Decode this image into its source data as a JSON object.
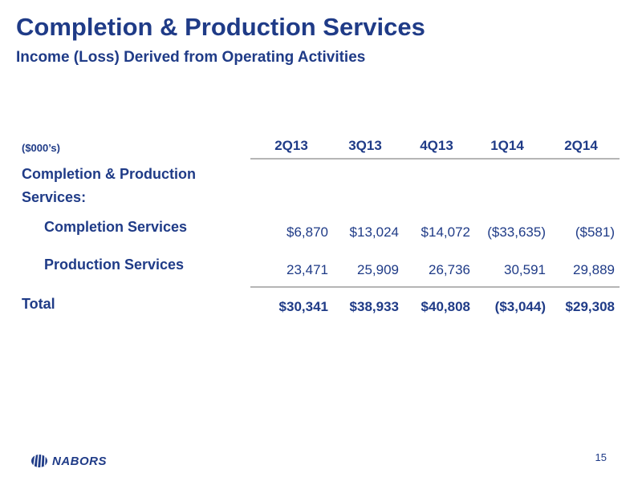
{
  "header": {
    "title": "Completion & Production Services",
    "subtitle": "Income (Loss) Derived from Operating Activities"
  },
  "table": {
    "units": "($000’s)",
    "columns": [
      "2Q13",
      "3Q13",
      "4Q13",
      "1Q14",
      "2Q14"
    ],
    "section_label_line1": "Completion & Production",
    "section_label_line2": "Services:",
    "rows": [
      {
        "label": "Completion Services",
        "values": [
          "$6,870",
          "$13,024",
          "$14,072",
          "($33,635)",
          "($581)"
        ]
      },
      {
        "label": "Production Services",
        "values": [
          "23,471",
          "25,909",
          "26,736",
          "30,591",
          "29,889"
        ]
      },
      {
        "label": "Total",
        "values": [
          "$30,341",
          "$38,933",
          "$40,808",
          "($3,044)",
          "$29,308"
        ]
      }
    ]
  },
  "footer": {
    "logo_text": "NABORS",
    "page_number": "15"
  },
  "colors": {
    "brand": "#1f3b87",
    "rule": "#b5b5b5"
  }
}
